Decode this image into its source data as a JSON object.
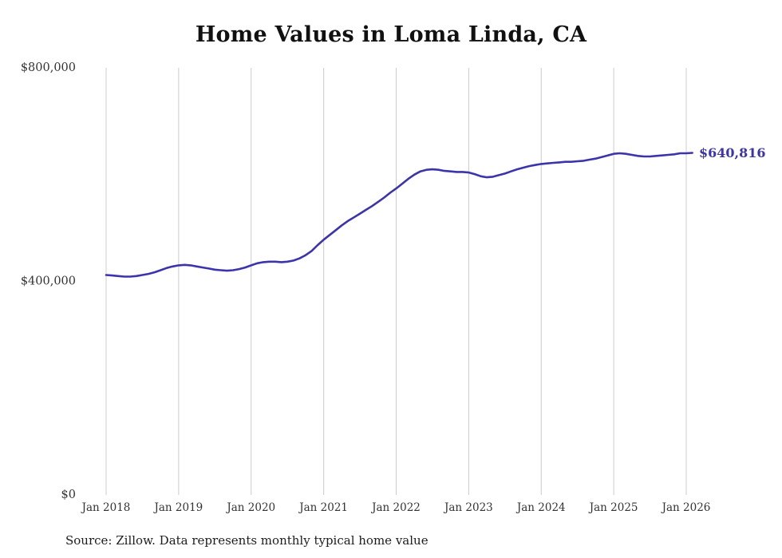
{
  "chart": {
    "title": "Home Values in Loma Linda, CA",
    "end_label": "$640,816",
    "source": "Source: Zillow. Data represents monthly typical home value"
  },
  "chart_data": {
    "type": "line",
    "title": "Home Values in Loma Linda, CA",
    "xlabel": "",
    "ylabel": "",
    "ylim": [
      0,
      800000
    ],
    "grid": "vertical-only",
    "legend": "none",
    "line_color": "#3b34ad",
    "gridline_color": "#cccccc",
    "tick_label_color": "#333333",
    "x_start_month": "2018-01",
    "x_end_month": "2026-02",
    "x_tick_labels": [
      "Jan 2018",
      "Jan 2019",
      "Jan 2020",
      "Jan 2021",
      "Jan 2022",
      "Jan 2023",
      "Jan 2024",
      "Jan 2025",
      "Jan 2026"
    ],
    "y_ticks": [
      {
        "value": 0,
        "label": "$0"
      },
      {
        "value": 400000,
        "label": "$400,000"
      },
      {
        "value": 800000,
        "label": "$800,000"
      }
    ],
    "series_name": "Typical home value (monthly)",
    "values": [
      412000,
      411000,
      410000,
      409000,
      409000,
      410000,
      412000,
      414000,
      417000,
      421000,
      425000,
      428000,
      430000,
      431000,
      430000,
      428000,
      426000,
      424000,
      422000,
      421000,
      420000,
      421000,
      423000,
      426000,
      430000,
      434000,
      436000,
      437000,
      437000,
      436000,
      437000,
      439000,
      443000,
      449000,
      457000,
      468000,
      478000,
      487000,
      496000,
      505000,
      513000,
      520000,
      527000,
      534000,
      541000,
      549000,
      557000,
      566000,
      574000,
      583000,
      592000,
      600000,
      606000,
      609000,
      610000,
      609000,
      607000,
      606000,
      605000,
      605000,
      604000,
      601000,
      597000,
      595000,
      596000,
      599000,
      602000,
      606000,
      610000,
      613000,
      616000,
      618000,
      620000,
      621000,
      622000,
      623000,
      624000,
      624000,
      625000,
      626000,
      628000,
      630000,
      633000,
      636000,
      639000,
      640000,
      639000,
      637000,
      635000,
      634000,
      634000,
      635000,
      636000,
      637000,
      638000,
      640000,
      640000,
      640816
    ],
    "final_value": 640816,
    "final_value_label": "$640,816",
    "source": "Source: Zillow. Data represents monthly typical home value"
  }
}
